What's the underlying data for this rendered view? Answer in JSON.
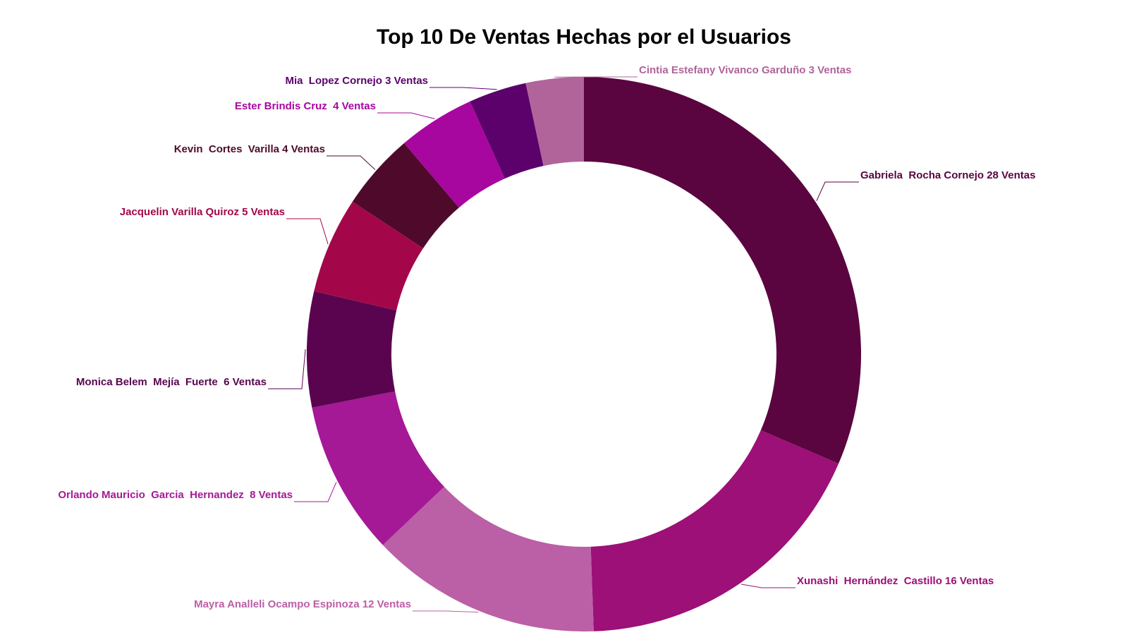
{
  "chart_data": {
    "type": "pie",
    "donut": true,
    "title": "Top 10 De Ventas Hechas por el Usuarios",
    "slices": [
      {
        "label": "Gabriela  Rocha Cornejo 28 Ventas",
        "value": 28,
        "color": "#5a0440"
      },
      {
        "label": "Xunashi  Hernández  Castillo 16 Ventas",
        "value": 16,
        "color": "#9c1077"
      },
      {
        "label": "Mayra Analleli Ocampo Espinoza 12 Ventas",
        "value": 12,
        "color": "#bb5fa6"
      },
      {
        "label": "Orlando Mauricio  Garcia  Hernandez  8 Ventas",
        "value": 8,
        "color": "#a51896"
      },
      {
        "label": "Monica Belem  Mejía  Fuerte  6 Ventas",
        "value": 6,
        "color": "#5a0450"
      },
      {
        "label": "Jacquelin Varilla Quiroz 5 Ventas",
        "value": 5,
        "color": "#a3074a"
      },
      {
        "label": "Kevin  Cortes  Varilla 4 Ventas",
        "value": 4,
        "color": "#4f0a2b"
      },
      {
        "label": "Ester Brindis Cruz  4 Ventas",
        "value": 4,
        "color": "#a7079f"
      },
      {
        "label": "Mia  Lopez Cornejo 3 Ventas",
        "value": 3,
        "color": "#5c016c"
      },
      {
        "label": "Cintia Estefany Vivanco Garduño 3 Ventas",
        "value": 3,
        "color": "#b0649a"
      }
    ]
  }
}
